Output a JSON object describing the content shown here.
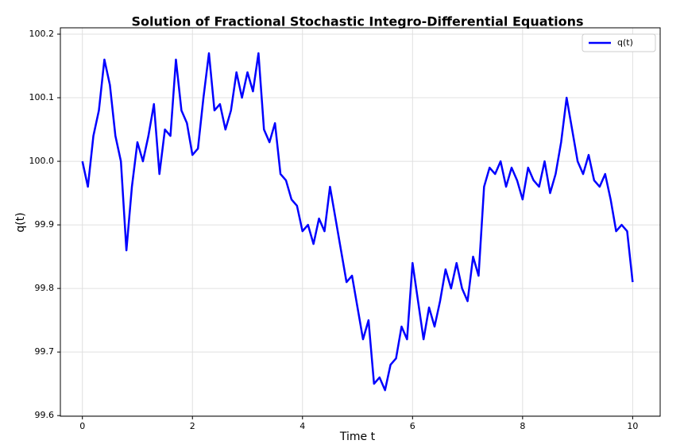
{
  "chart_data": {
    "type": "line",
    "title": "Solution of Fractional Stochastic Integro-Differential Equations",
    "x_label": "Time t",
    "y_label": "q(t)",
    "x": [
      0,
      0.1,
      0.2,
      0.3,
      0.4,
      0.5,
      0.6,
      0.7,
      0.8,
      0.9,
      1,
      1.1,
      1.2,
      1.3,
      1.4,
      1.5,
      1.6,
      1.7,
      1.8,
      1.9,
      2,
      2.1,
      2.2,
      2.3,
      2.4,
      2.5,
      2.6,
      2.7,
      2.8,
      2.9,
      3,
      3.1,
      3.2,
      3.3,
      3.4,
      3.5,
      3.6,
      3.7,
      3.8,
      3.9,
      4,
      4.1,
      4.2,
      4.3,
      4.4,
      4.5,
      4.6,
      4.7,
      4.8,
      4.9,
      5,
      5.1,
      5.2,
      5.3,
      5.4,
      5.5,
      5.6,
      5.7,
      5.8,
      5.9,
      6,
      6.1,
      6.2,
      6.3,
      6.4,
      6.5,
      6.6,
      6.7,
      6.8,
      6.9,
      7,
      7.1,
      7.2,
      7.3,
      7.4,
      7.5,
      7.6,
      7.7,
      7.8,
      7.9,
      8,
      8.1,
      8.2,
      8.3,
      8.4,
      8.5,
      8.6,
      8.7,
      8.8,
      8.9,
      9,
      9.1,
      9.2,
      9.3,
      9.4,
      9.5,
      9.6,
      9.7,
      9.8,
      9.9,
      10
    ],
    "series": [
      {
        "name": "q(t)",
        "color": "#0000ff",
        "values": [
          100.0,
          99.96,
          100.04,
          100.08,
          100.16,
          100.12,
          100.04,
          100.0,
          99.86,
          99.96,
          100.03,
          100.0,
          100.04,
          100.09,
          99.98,
          100.05,
          100.04,
          100.16,
          100.08,
          100.06,
          100.01,
          100.02,
          100.1,
          100.17,
          100.08,
          100.09,
          100.05,
          100.08,
          100.14,
          100.1,
          100.14,
          100.11,
          100.17,
          100.05,
          100.03,
          100.06,
          99.98,
          99.97,
          99.94,
          99.93,
          99.89,
          99.9,
          99.87,
          99.91,
          99.89,
          99.96,
          99.91,
          99.86,
          99.81,
          99.82,
          99.77,
          99.72,
          99.75,
          99.65,
          99.66,
          99.64,
          99.68,
          99.69,
          99.74,
          99.72,
          99.84,
          99.78,
          99.72,
          99.77,
          99.74,
          99.78,
          99.83,
          99.8,
          99.84,
          99.8,
          99.78,
          99.85,
          99.82,
          99.96,
          99.99,
          99.98,
          100.0,
          99.96,
          99.99,
          99.97,
          99.94,
          99.99,
          99.97,
          99.96,
          100.0,
          99.95,
          99.98,
          100.03,
          100.1,
          100.05,
          100.0,
          99.98,
          100.01,
          99.97,
          99.96,
          99.98,
          99.94,
          99.89,
          99.9,
          99.89,
          99.81
        ]
      }
    ],
    "xlim": [
      -0.4,
      10.5
    ],
    "ylim": [
      99.599,
      100.21
    ],
    "xticks": [
      0,
      2,
      4,
      6,
      8,
      10
    ],
    "yticks": [
      99.6,
      99.7,
      99.8,
      99.9,
      {
        "value": 100,
        "label": "100.0"
      },
      100.1,
      100.2
    ],
    "grid": true,
    "legend": "upper right"
  }
}
